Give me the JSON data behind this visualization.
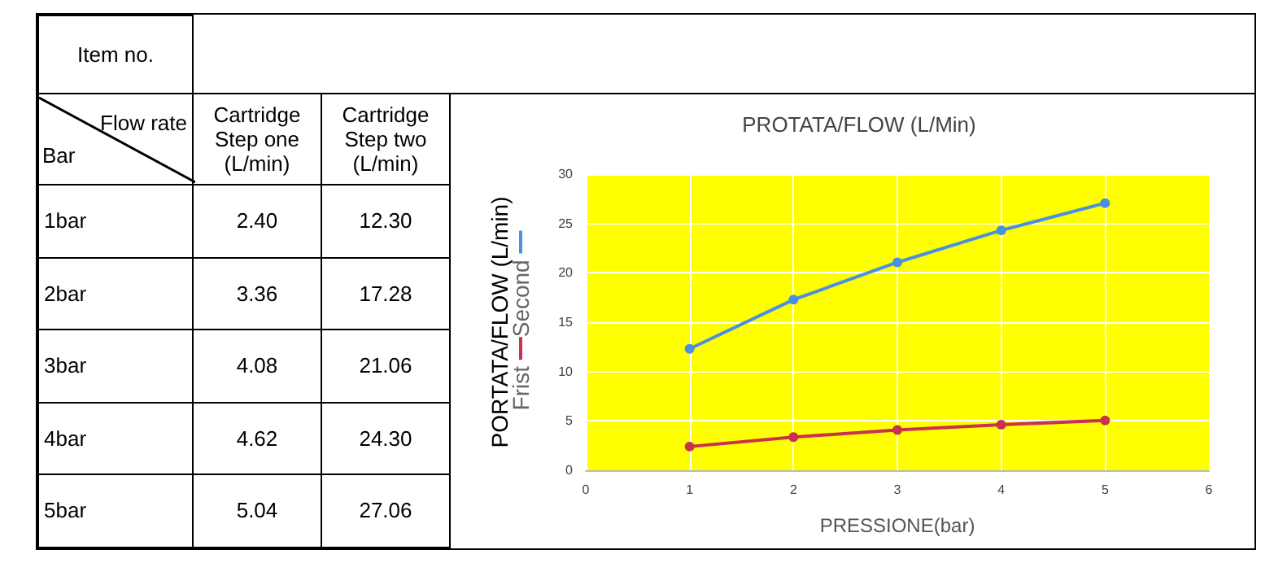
{
  "chart_data": {
    "type": "line",
    "title": "PROTATA/FLOW (L/Min)",
    "xlabel": "PRESSIONE(bar)",
    "ylabel": "PORTATA/FLOW (L/min)",
    "annotations": [
      "Item no.",
      "Flow rate",
      "Bar",
      "Cartridge Step one (L/min)",
      "Cartridge Step two (L/min)",
      "1bar",
      "2bar",
      "3bar",
      "4bar",
      "5bar",
      "2.40",
      "12.30",
      "3.36",
      "17.28",
      "4.08",
      "21.06",
      "4.62",
      "24.30",
      "5.04",
      "27.06"
    ],
    "x": [
      1,
      2,
      3,
      4,
      5
    ],
    "series": [
      {
        "name": "Frist",
        "color": "#c8324f",
        "values": [
          2.4,
          3.36,
          4.08,
          4.62,
          5.04
        ]
      },
      {
        "name": "Second",
        "color": "#4a90e2",
        "values": [
          12.3,
          17.28,
          21.06,
          24.3,
          27.06
        ]
      }
    ],
    "xlim": [
      0,
      6
    ],
    "xticks": [
      0,
      1,
      2,
      3,
      4,
      5,
      6
    ],
    "ylim": [
      0,
      30
    ],
    "yticks": [
      0,
      5,
      10,
      15,
      20,
      25,
      30
    ],
    "grid": true,
    "legend": "left",
    "marker": "circle"
  }
}
